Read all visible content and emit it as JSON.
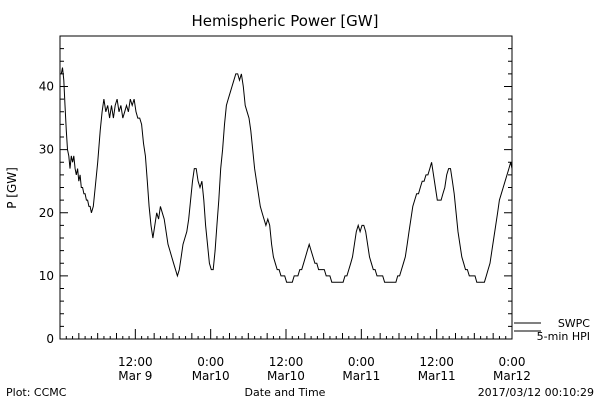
{
  "chart_data": {
    "type": "line",
    "title": "Hemispheric Power [GW]",
    "ylabel": "P [GW]",
    "xlabel": "Date and Time",
    "ylim": [
      0,
      48
    ],
    "yticks": [
      0,
      10,
      20,
      30,
      40
    ],
    "xlim_hours": [
      0,
      72
    ],
    "xticks": [
      {
        "hour": 12,
        "line1": "12:00",
        "line2": "Mar 9"
      },
      {
        "hour": 24,
        "line1": "0:00",
        "line2": "Mar10"
      },
      {
        "hour": 36,
        "line1": "12:00",
        "line2": "Mar10"
      },
      {
        "hour": 48,
        "line1": "0:00",
        "line2": "Mar11"
      },
      {
        "hour": 60,
        "line1": "12:00",
        "line2": "Mar11"
      },
      {
        "hour": 72,
        "line1": "0:00",
        "line2": "Mar12"
      }
    ],
    "legend": [
      {
        "label": "SWPC",
        "line": true
      },
      {
        "label": "5-min HPI",
        "line": true
      }
    ],
    "grid": false,
    "series": [
      {
        "points": [
          [
            0.2,
            42
          ],
          [
            0.4,
            43
          ],
          [
            0.6,
            41
          ],
          [
            0.8,
            37
          ],
          [
            1.0,
            33
          ],
          [
            1.2,
            30
          ],
          [
            1.4,
            29
          ],
          [
            1.6,
            27
          ],
          [
            1.8,
            29
          ],
          [
            2.0,
            28
          ],
          [
            2.2,
            29
          ],
          [
            2.4,
            27
          ],
          [
            2.6,
            26
          ],
          [
            2.8,
            27
          ],
          [
            3.0,
            25
          ],
          [
            3.2,
            26
          ],
          [
            3.4,
            24
          ],
          [
            3.6,
            24
          ],
          [
            3.8,
            23
          ],
          [
            4.0,
            23
          ],
          [
            4.2,
            22
          ],
          [
            4.4,
            22
          ],
          [
            4.6,
            21
          ],
          [
            4.8,
            21
          ],
          [
            5.0,
            20
          ],
          [
            5.3,
            21
          ],
          [
            5.6,
            24
          ],
          [
            6.0,
            28
          ],
          [
            6.4,
            33
          ],
          [
            6.7,
            36
          ],
          [
            7.0,
            38
          ],
          [
            7.3,
            36
          ],
          [
            7.6,
            37
          ],
          [
            7.9,
            35
          ],
          [
            8.2,
            37
          ],
          [
            8.5,
            35
          ],
          [
            8.8,
            37
          ],
          [
            9.1,
            38
          ],
          [
            9.4,
            36
          ],
          [
            9.7,
            37
          ],
          [
            10.0,
            35
          ],
          [
            10.3,
            36
          ],
          [
            10.6,
            37
          ],
          [
            10.9,
            36
          ],
          [
            11.2,
            38
          ],
          [
            11.5,
            37
          ],
          [
            11.8,
            38
          ],
          [
            12.1,
            36
          ],
          [
            12.4,
            35
          ],
          [
            12.7,
            35
          ],
          [
            13.0,
            34
          ],
          [
            13.3,
            31
          ],
          [
            13.6,
            29
          ],
          [
            13.9,
            25
          ],
          [
            14.2,
            21
          ],
          [
            14.5,
            18
          ],
          [
            14.8,
            16
          ],
          [
            15.1,
            18
          ],
          [
            15.4,
            20
          ],
          [
            15.7,
            19
          ],
          [
            16.0,
            21
          ],
          [
            16.3,
            20
          ],
          [
            16.6,
            19
          ],
          [
            16.9,
            17
          ],
          [
            17.2,
            15
          ],
          [
            17.5,
            14
          ],
          [
            17.8,
            13
          ],
          [
            18.1,
            12
          ],
          [
            18.4,
            11
          ],
          [
            18.7,
            10
          ],
          [
            19.0,
            11
          ],
          [
            19.3,
            13
          ],
          [
            19.6,
            15
          ],
          [
            19.9,
            16
          ],
          [
            20.2,
            17
          ],
          [
            20.5,
            19
          ],
          [
            20.8,
            22
          ],
          [
            21.1,
            25
          ],
          [
            21.4,
            27
          ],
          [
            21.7,
            27
          ],
          [
            22.0,
            25
          ],
          [
            22.3,
            24
          ],
          [
            22.6,
            25
          ],
          [
            22.9,
            22
          ],
          [
            23.2,
            18
          ],
          [
            23.5,
            15
          ],
          [
            23.8,
            12
          ],
          [
            24.1,
            11
          ],
          [
            24.4,
            11
          ],
          [
            24.7,
            14
          ],
          [
            25.0,
            18
          ],
          [
            25.3,
            22
          ],
          [
            25.6,
            27
          ],
          [
            25.9,
            30
          ],
          [
            26.2,
            34
          ],
          [
            26.5,
            37
          ],
          [
            26.8,
            38
          ],
          [
            27.1,
            39
          ],
          [
            27.4,
            40
          ],
          [
            27.7,
            41
          ],
          [
            28.0,
            42
          ],
          [
            28.3,
            42
          ],
          [
            28.6,
            41
          ],
          [
            28.9,
            42
          ],
          [
            29.2,
            40
          ],
          [
            29.5,
            37
          ],
          [
            29.8,
            36
          ],
          [
            30.1,
            35
          ],
          [
            30.4,
            33
          ],
          [
            30.7,
            30
          ],
          [
            31.0,
            27
          ],
          [
            31.3,
            25
          ],
          [
            31.6,
            23
          ],
          [
            31.9,
            21
          ],
          [
            32.2,
            20
          ],
          [
            32.5,
            19
          ],
          [
            32.8,
            18
          ],
          [
            33.1,
            19
          ],
          [
            33.4,
            18
          ],
          [
            33.7,
            15
          ],
          [
            34.0,
            13
          ],
          [
            34.3,
            12
          ],
          [
            34.6,
            11
          ],
          [
            34.9,
            11
          ],
          [
            35.2,
            10
          ],
          [
            35.5,
            10
          ],
          [
            35.8,
            10
          ],
          [
            36.1,
            9
          ],
          [
            36.4,
            9
          ],
          [
            36.7,
            9
          ],
          [
            37.0,
            9
          ],
          [
            37.3,
            10
          ],
          [
            37.6,
            10
          ],
          [
            37.9,
            10
          ],
          [
            38.2,
            11
          ],
          [
            38.5,
            11
          ],
          [
            38.8,
            12
          ],
          [
            39.1,
            13
          ],
          [
            39.4,
            14
          ],
          [
            39.7,
            15
          ],
          [
            40.0,
            14
          ],
          [
            40.3,
            13
          ],
          [
            40.6,
            12
          ],
          [
            40.9,
            12
          ],
          [
            41.2,
            11
          ],
          [
            41.5,
            11
          ],
          [
            41.8,
            11
          ],
          [
            42.1,
            11
          ],
          [
            42.4,
            10
          ],
          [
            42.7,
            10
          ],
          [
            43.0,
            10
          ],
          [
            43.3,
            9
          ],
          [
            43.6,
            9
          ],
          [
            43.9,
            9
          ],
          [
            44.2,
            9
          ],
          [
            44.5,
            9
          ],
          [
            44.8,
            9
          ],
          [
            45.1,
            9
          ],
          [
            45.4,
            10
          ],
          [
            45.7,
            10
          ],
          [
            46.0,
            11
          ],
          [
            46.3,
            12
          ],
          [
            46.6,
            13
          ],
          [
            46.9,
            15
          ],
          [
            47.2,
            17
          ],
          [
            47.5,
            18
          ],
          [
            47.8,
            17
          ],
          [
            48.1,
            18
          ],
          [
            48.4,
            18
          ],
          [
            48.7,
            17
          ],
          [
            49.0,
            15
          ],
          [
            49.3,
            13
          ],
          [
            49.6,
            12
          ],
          [
            49.9,
            11
          ],
          [
            50.2,
            11
          ],
          [
            50.5,
            10
          ],
          [
            50.8,
            10
          ],
          [
            51.1,
            10
          ],
          [
            51.4,
            10
          ],
          [
            51.7,
            9
          ],
          [
            52.0,
            9
          ],
          [
            52.3,
            9
          ],
          [
            52.6,
            9
          ],
          [
            52.9,
            9
          ],
          [
            53.2,
            9
          ],
          [
            53.5,
            9
          ],
          [
            53.8,
            10
          ],
          [
            54.1,
            10
          ],
          [
            54.4,
            11
          ],
          [
            54.7,
            12
          ],
          [
            55.0,
            13
          ],
          [
            55.3,
            15
          ],
          [
            55.6,
            17
          ],
          [
            55.9,
            19
          ],
          [
            56.2,
            21
          ],
          [
            56.5,
            22
          ],
          [
            56.8,
            23
          ],
          [
            57.1,
            23
          ],
          [
            57.4,
            24
          ],
          [
            57.7,
            25
          ],
          [
            58.0,
            25
          ],
          [
            58.3,
            26
          ],
          [
            58.6,
            26
          ],
          [
            58.9,
            27
          ],
          [
            59.2,
            28
          ],
          [
            59.5,
            26
          ],
          [
            59.8,
            24
          ],
          [
            60.1,
            22
          ],
          [
            60.4,
            22
          ],
          [
            60.7,
            22
          ],
          [
            61.0,
            23
          ],
          [
            61.3,
            24
          ],
          [
            61.6,
            26
          ],
          [
            61.9,
            27
          ],
          [
            62.2,
            27
          ],
          [
            62.5,
            25
          ],
          [
            62.8,
            23
          ],
          [
            63.1,
            20
          ],
          [
            63.4,
            17
          ],
          [
            63.7,
            15
          ],
          [
            64.0,
            13
          ],
          [
            64.3,
            12
          ],
          [
            64.6,
            11
          ],
          [
            64.9,
            11
          ],
          [
            65.2,
            10
          ],
          [
            65.5,
            10
          ],
          [
            65.8,
            10
          ],
          [
            66.1,
            10
          ],
          [
            66.4,
            9
          ],
          [
            66.7,
            9
          ],
          [
            67.0,
            9
          ],
          [
            67.3,
            9
          ],
          [
            67.6,
            9
          ],
          [
            67.9,
            10
          ],
          [
            68.2,
            11
          ],
          [
            68.5,
            12
          ],
          [
            68.8,
            14
          ],
          [
            69.1,
            16
          ],
          [
            69.4,
            18
          ],
          [
            69.7,
            20
          ],
          [
            70.0,
            22
          ],
          [
            70.3,
            23
          ],
          [
            70.6,
            24
          ],
          [
            70.9,
            25
          ],
          [
            71.2,
            26
          ],
          [
            71.5,
            27
          ],
          [
            71.8,
            28
          ],
          [
            72.0,
            27
          ]
        ]
      }
    ]
  },
  "footer": {
    "left": "Plot: CCMC",
    "right": "2017/03/12 00:10:29"
  }
}
